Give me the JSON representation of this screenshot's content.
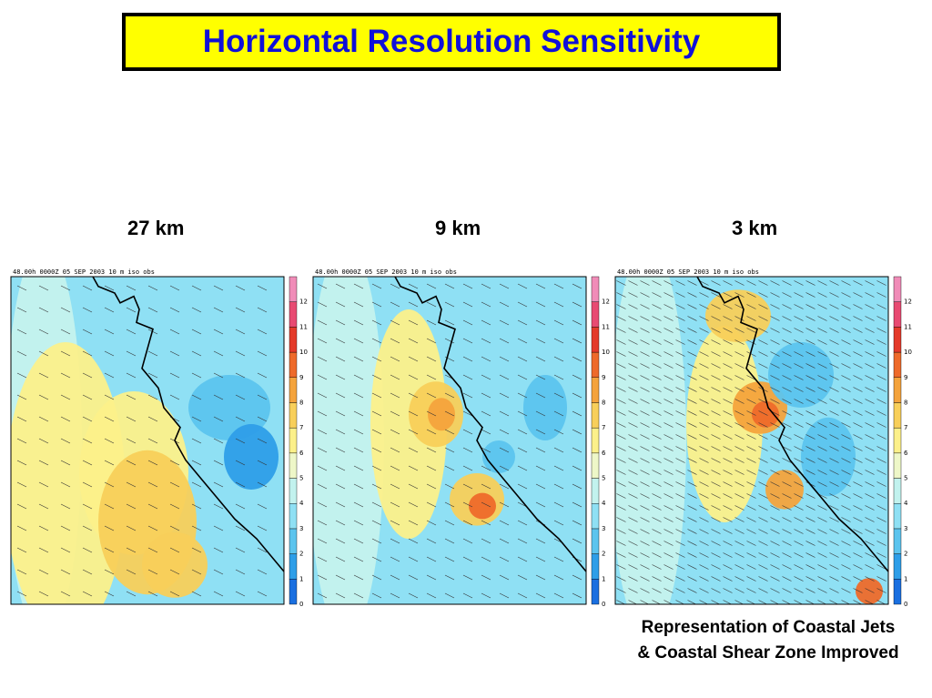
{
  "title": "Horizontal Resolution Sensitivity",
  "panels": [
    {
      "resolution": "27 km",
      "header": "48.00h   0000Z 05 SEP 2003      10 m   iso    obs"
    },
    {
      "resolution": "9 km",
      "header": "48.00h   0000Z 05 SEP 2003      10 m   iso    obs"
    },
    {
      "resolution": "3 km",
      "header": "48.00h   0000Z 05 SEP 2003      10 m   iso    obs"
    }
  ],
  "caption": {
    "line1": "Representation of Coastal Jets",
    "line2": "& Coastal Shear Zone Improved"
  },
  "chart_data": {
    "type": "heatmap",
    "colorbar": {
      "ticks": [
        "0",
        "1",
        "2",
        "3",
        "4",
        "5",
        "6",
        "7",
        "8",
        "9",
        "10",
        "11",
        "12"
      ],
      "colors": [
        "#1a6fe0",
        "#2e9ee8",
        "#5cc4ee",
        "#8fe0f4",
        "#c2f2ee",
        "#eef7c8",
        "#fcf08a",
        "#f8cf5a",
        "#f4a33c",
        "#ee6a2a",
        "#e43a2a",
        "#e84a72",
        "#f08cb8"
      ]
    },
    "colors": {
      "ocean_base": "#8fe0f4",
      "coast_line": "#000000"
    }
  }
}
